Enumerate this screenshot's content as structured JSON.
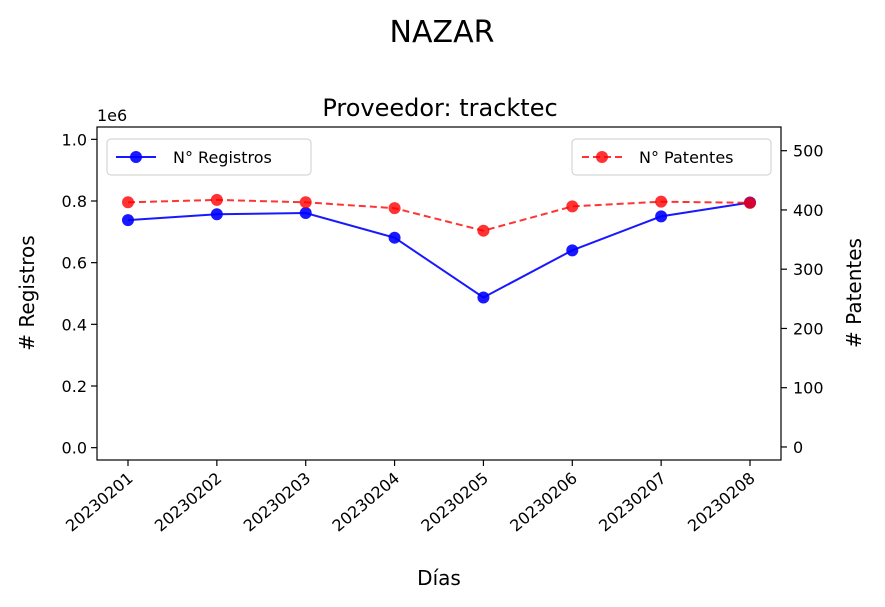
{
  "chart_data": {
    "type": "line",
    "suptitle": "NAZAR",
    "title": "Proveedor: tracktec",
    "xlabel": "Días",
    "ylabel_left": "# Registros",
    "ylabel_right": "# Patentes",
    "left_offset_label": "1e6",
    "categories": [
      "20230201",
      "20230202",
      "20230203",
      "20230204",
      "20230205",
      "20230206",
      "20230207",
      "20230208"
    ],
    "y_left_lim": [
      -0.04,
      1.04
    ],
    "y_left_ticks": [
      0.0,
      0.2,
      0.4,
      0.6,
      0.8,
      1.0
    ],
    "y_left_tick_labels": [
      "0.0",
      "0.2",
      "0.4",
      "0.6",
      "0.8",
      "1.0"
    ],
    "y_right_lim": [
      -22,
      540
    ],
    "y_right_ticks": [
      0,
      100,
      200,
      300,
      400,
      500
    ],
    "y_right_tick_labels": [
      "0",
      "100",
      "200",
      "300",
      "400",
      "500"
    ],
    "series": [
      {
        "name": "N° Registros",
        "axis": "left",
        "color": "#0000ff",
        "style": "solid",
        "values": [
          0.738,
          0.757,
          0.761,
          0.681,
          0.487,
          0.64,
          0.75,
          0.795
        ]
      },
      {
        "name": "N° Patentes",
        "axis": "right",
        "color": "#ff0000",
        "style": "dashed",
        "values": [
          413,
          417,
          413,
          403,
          365,
          406,
          414,
          412
        ]
      }
    ],
    "legend_left": "upper-left",
    "legend_right": "upper-right",
    "grid": false
  }
}
